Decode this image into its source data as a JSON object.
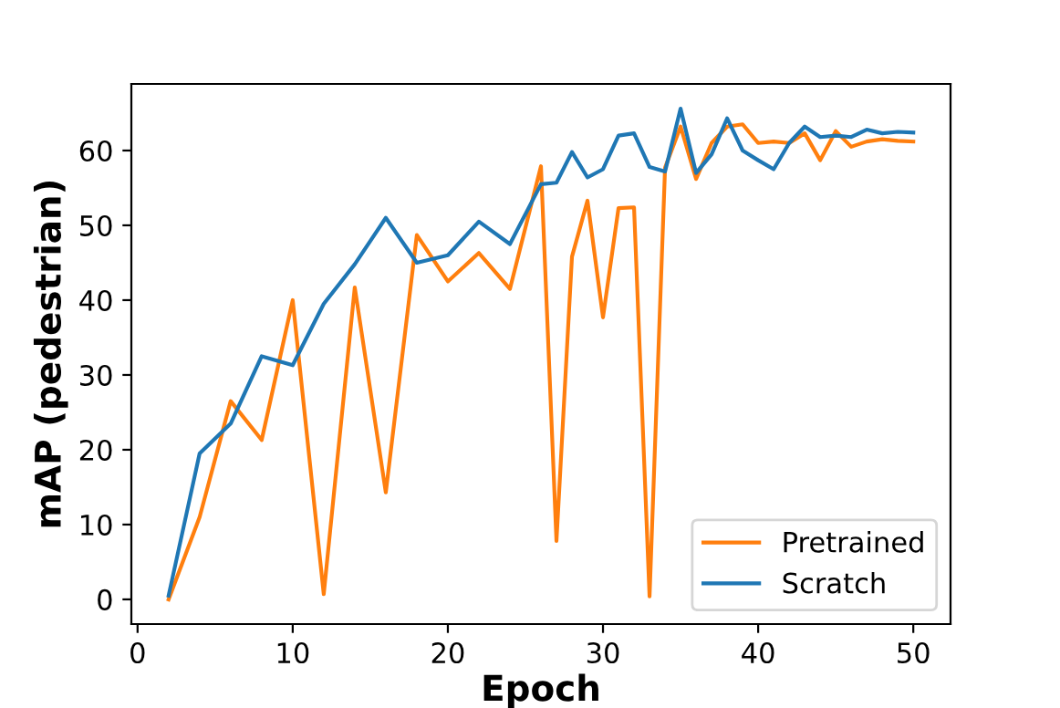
{
  "chart_data": {
    "type": "line",
    "xlabel": "Epoch",
    "ylabel": "mAP (pedestrian)",
    "xlim": [
      -0.4,
      52.4
    ],
    "ylim": [
      -3.3,
      68.9
    ],
    "xticks": [
      0,
      10,
      20,
      30,
      40,
      50
    ],
    "yticks": [
      0,
      10,
      20,
      30,
      40,
      50,
      60
    ],
    "grid": false,
    "legend": "bottom right",
    "marker": "none",
    "line_style": "solid",
    "series": [
      {
        "name": "Pretrained",
        "color": "#ff7f0e",
        "x": [
          2,
          4,
          6,
          8,
          10,
          12,
          14,
          16,
          18,
          20,
          22,
          24,
          26,
          27,
          28,
          29,
          30,
          31,
          32,
          33,
          34,
          35,
          36,
          37,
          38,
          39,
          40,
          41,
          42,
          43,
          44,
          45,
          46,
          47,
          48,
          49,
          50
        ],
        "values": [
          0,
          11,
          26.5,
          21.3,
          40,
          0.7,
          41.7,
          14.3,
          48.7,
          42.5,
          46.3,
          41.5,
          57.9,
          7.8,
          45.8,
          53.3,
          37.7,
          52.3,
          52.4,
          0.4,
          57.7,
          63.2,
          56.2,
          61,
          63.2,
          63.5,
          61,
          61.2,
          61,
          62.3,
          58.7,
          62.6,
          60.5,
          61.2,
          61.5,
          61.3,
          61.2
        ]
      },
      {
        "name": "Scratch",
        "color": "#1f77b4",
        "x": [
          2,
          4,
          6,
          8,
          10,
          12,
          14,
          16,
          18,
          20,
          22,
          24,
          26,
          27,
          28,
          29,
          30,
          31,
          32,
          33,
          34,
          35,
          36,
          37,
          38,
          39,
          40,
          41,
          42,
          43,
          44,
          45,
          46,
          47,
          48,
          49,
          50
        ],
        "values": [
          0.5,
          19.5,
          23.5,
          32.5,
          31.3,
          39.5,
          44.8,
          51,
          45,
          46,
          50.5,
          47.5,
          55.5,
          55.7,
          59.8,
          56.4,
          57.5,
          62,
          62.3,
          57.8,
          57.2,
          65.6,
          57,
          59.5,
          64.3,
          60,
          58.7,
          57.5,
          61,
          63.2,
          61.8,
          62,
          61.8,
          62.8,
          62.3,
          62.5,
          62.4
        ]
      }
    ]
  }
}
